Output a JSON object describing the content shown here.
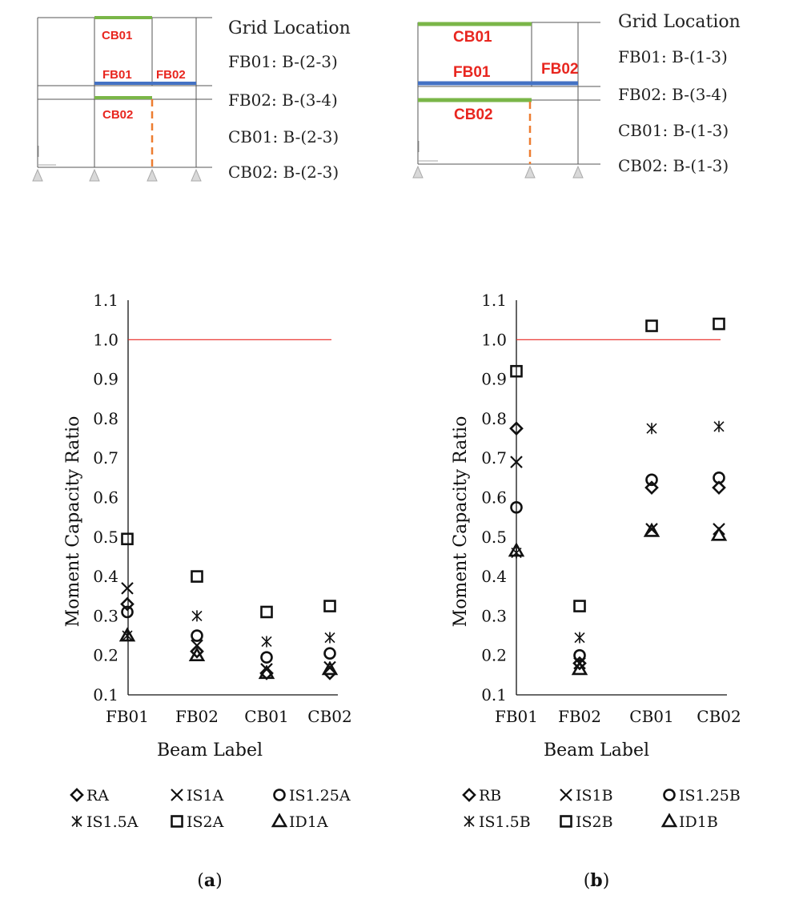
{
  "schematics": [
    {
      "labels": {
        "cb_top": "CB01",
        "fb_left": "FB01",
        "fb_right": "FB02",
        "cb_bottom": "CB02"
      },
      "colors": {
        "cb": "#7ab648",
        "fb": "#4472c4",
        "link": "#ed7d31",
        "text": "#e8261f"
      },
      "grid_title": "Grid Location",
      "grid_lines": [
        "FB01: B-(2-3)",
        "FB02: B-(3-4)",
        "CB01: B-(2-3)",
        "CB02: B-(2-3)"
      ]
    },
    {
      "labels": {
        "cb_top": "CB01",
        "fb_left": "FB01",
        "fb_right": "FB02",
        "cb_bottom": "CB02"
      },
      "colors": {
        "cb": "#7ab648",
        "fb": "#4472c4",
        "link": "#ed7d31",
        "text": "#e8261f"
      },
      "grid_title": "Grid Location",
      "grid_lines": [
        "FB01: B-(1-3)",
        "FB02: B-(3-4)",
        "CB01: B-(1-3)",
        "CB02: B-(1-3)"
      ]
    }
  ],
  "chart_data": [
    {
      "type": "scatter",
      "caption": "a",
      "xlabel": "Beam Label",
      "ylabel": "Moment Capacity Ratio",
      "categories": [
        "FB01",
        "FB02",
        "CB01",
        "CB02"
      ],
      "ylim": [
        0.1,
        1.1
      ],
      "yticks": [
        "0.1",
        "0.2",
        "0.3",
        "0.4",
        "0.5",
        "0.6",
        "0.7",
        "0.8",
        "0.9",
        "1.0",
        "1.1"
      ],
      "reference_line": {
        "y": 1.0,
        "color": "#e8261f"
      },
      "series": [
        {
          "name": "RA",
          "marker": "diamond",
          "values": [
            0.33,
            0.21,
            0.155,
            0.155
          ]
        },
        {
          "name": "IS1A",
          "marker": "x",
          "values": [
            0.37,
            0.225,
            0.165,
            0.17
          ]
        },
        {
          "name": "IS1.25A",
          "marker": "circle",
          "values": [
            0.31,
            0.25,
            0.195,
            0.205
          ]
        },
        {
          "name": "IS1.5A",
          "marker": "asterisk",
          "values": [
            0.25,
            0.3,
            0.235,
            0.245
          ]
        },
        {
          "name": "IS2A",
          "marker": "square",
          "values": [
            0.495,
            0.4,
            0.31,
            0.325
          ]
        },
        {
          "name": "ID1A",
          "marker": "triangle",
          "values": [
            0.25,
            0.2,
            0.155,
            0.165
          ]
        }
      ]
    },
    {
      "type": "scatter",
      "caption": "b",
      "xlabel": "Beam Label",
      "ylabel": "Moment Capacity Ratio",
      "categories": [
        "FB01",
        "FB02",
        "CB01",
        "CB02"
      ],
      "ylim": [
        0.1,
        1.1
      ],
      "yticks": [
        "0.1",
        "0.2",
        "0.3",
        "0.4",
        "0.5",
        "0.6",
        "0.7",
        "0.8",
        "0.9",
        "1.0",
        "1.1"
      ],
      "reference_line": {
        "y": 1.0,
        "color": "#e8261f"
      },
      "series": [
        {
          "name": "RB",
          "marker": "diamond",
          "values": [
            0.775,
            0.18,
            0.625,
            0.625
          ]
        },
        {
          "name": "IS1B",
          "marker": "x",
          "values": [
            0.69,
            0.18,
            0.52,
            0.52
          ]
        },
        {
          "name": "IS1.25B",
          "marker": "circle",
          "values": [
            0.575,
            0.2,
            0.645,
            0.65
          ]
        },
        {
          "name": "IS1.5B",
          "marker": "asterisk",
          "values": [
            0.46,
            0.245,
            0.775,
            0.78
          ]
        },
        {
          "name": "IS2B",
          "marker": "square",
          "values": [
            0.92,
            0.325,
            1.035,
            1.04
          ]
        },
        {
          "name": "ID1B",
          "marker": "triangle",
          "values": [
            0.465,
            0.165,
            0.515,
            0.505
          ]
        }
      ]
    }
  ]
}
